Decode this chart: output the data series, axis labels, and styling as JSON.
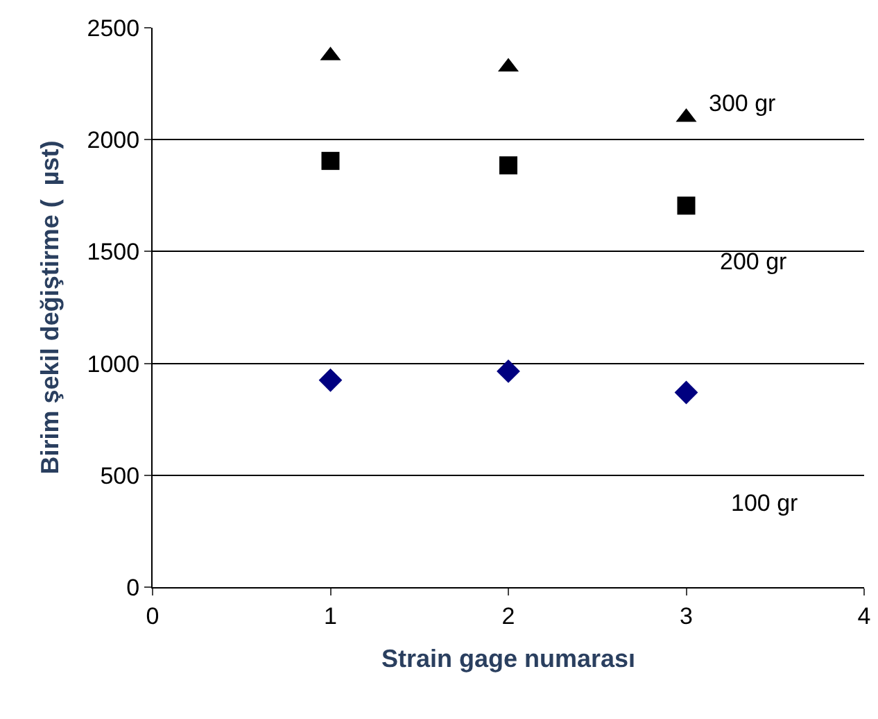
{
  "chart_data": {
    "type": "scatter",
    "xlabel": "Strain gage numarası",
    "ylabel": "Birim şekil değiştirme (  µst)",
    "x": [
      1,
      2,
      3
    ],
    "series": [
      {
        "name": "300 gr",
        "color": "#000000",
        "marker": "triangle",
        "values": [
          2375,
          2325,
          2100
        ]
      },
      {
        "name": "200 gr",
        "color": "#000000",
        "marker": "square",
        "values": [
          1905,
          1885,
          1705
        ]
      },
      {
        "name": "100 gr",
        "color": "#000080",
        "marker": "diamond",
        "values": [
          925,
          965,
          870
        ]
      }
    ],
    "xlim": [
      0,
      4
    ],
    "xticks": [
      0,
      1,
      2,
      3,
      4
    ],
    "ylim": [
      0,
      2500
    ],
    "yticks": [
      0,
      500,
      1000,
      1500,
      2000,
      2500
    ],
    "grid": "y",
    "legend": false
  }
}
